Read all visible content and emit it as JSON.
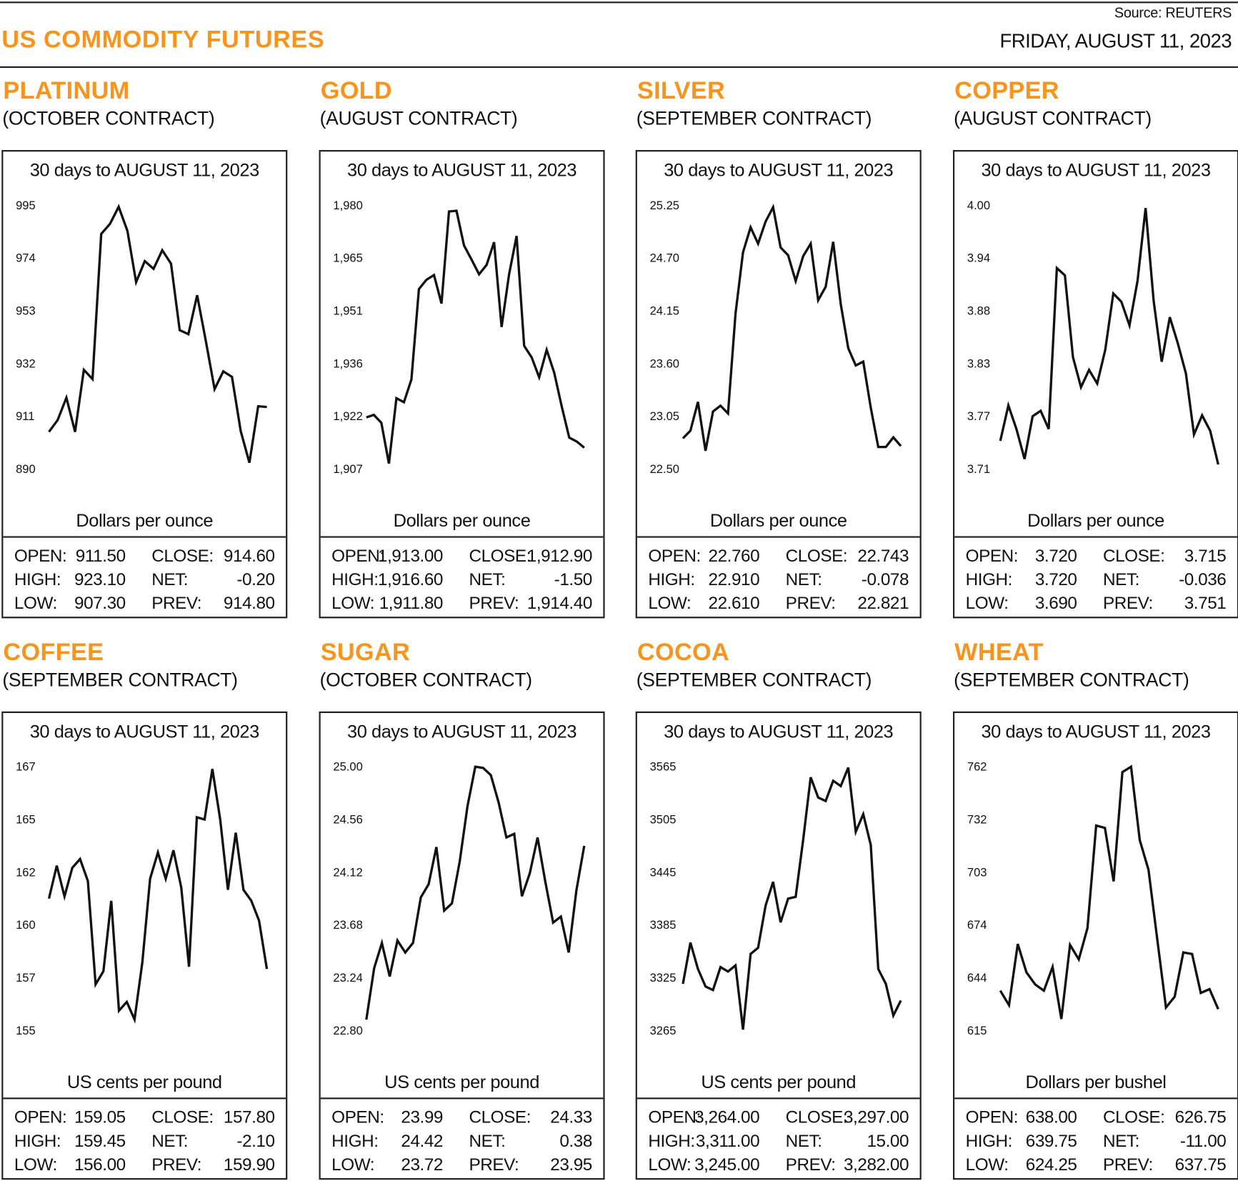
{
  "header": {
    "title": "US COMMODITY FUTURES",
    "source_label": "Source:",
    "source": "REUTERS",
    "date": "FRIDAY, AUGUST 11, 2023"
  },
  "colors": {
    "accent": "#F7941D",
    "line": "#111111",
    "rule": "#222222"
  },
  "stat_labels": {
    "open": "OPEN:",
    "high": "HIGH:",
    "low": "LOW:",
    "close": "CLOSE:",
    "net": "NET:",
    "prev": "PREV:"
  },
  "chart_data": [
    {
      "type": "line",
      "name": "PLATINUM",
      "contract": "(OCTOBER CONTRACT)",
      "title": "30 days to AUGUST 11, 2023",
      "ylabel": "Dollars per ounce",
      "yticks": [
        "995",
        "974",
        "953",
        "932",
        "911",
        "890"
      ],
      "ylim": [
        890,
        995
      ],
      "grid": false,
      "values": [
        904.8,
        909.5,
        918.4,
        904.8,
        929.5,
        925.8,
        983.6,
        987.6,
        994.4,
        984.8,
        964.4,
        972.8,
        969.7,
        977.1,
        971.8,
        945.3,
        943.7,
        959.2,
        941.0,
        921.8,
        928.9,
        926.7,
        905.1,
        892.5,
        915.0,
        914.7
      ],
      "stats": {
        "open": "911.50",
        "high": "923.10",
        "low": "907.30",
        "close": "914.60",
        "net": "-0.20",
        "prev": "914.80"
      }
    },
    {
      "type": "line",
      "name": "GOLD",
      "contract": "(AUGUST CONTRACT)",
      "title": "30 days to AUGUST 11, 2023",
      "ylabel": "Dollars per ounce",
      "yticks": [
        "1,980",
        "1,965",
        "1,951",
        "1,936",
        "1,922",
        "1,907"
      ],
      "ylim": [
        1907,
        1980
      ],
      "grid": false,
      "values": [
        1921.3,
        1922.0,
        1919.8,
        1908.5,
        1926.6,
        1925.5,
        1931.8,
        1956.8,
        1959.4,
        1960.7,
        1952.8,
        1978.3,
        1978.5,
        1968.9,
        1965.0,
        1960.9,
        1963.5,
        1969.8,
        1946.3,
        1960.9,
        1971.5,
        1941.1,
        1937.9,
        1932.4,
        1940.0,
        1933.7,
        1924.4,
        1915.7,
        1914.6,
        1912.9
      ],
      "stats": {
        "open": "1,913.00",
        "high": "1,916.60",
        "low": "1,911.80",
        "close": "1,912.90",
        "net": "-1.50",
        "prev": "1,914.40"
      }
    },
    {
      "type": "line",
      "name": "SILVER",
      "contract": "(SEPTEMBER CONTRACT)",
      "title": "30 days to AUGUST 11, 2023",
      "ylabel": "Dollars per ounce",
      "yticks": [
        "25.25",
        "24.70",
        "24.15",
        "23.60",
        "23.05",
        "22.50"
      ],
      "ylim": [
        22.5,
        25.25
      ],
      "grid": false,
      "values": [
        22.82,
        22.9,
        23.2,
        22.69,
        23.1,
        23.16,
        23.08,
        24.12,
        24.76,
        25.02,
        24.85,
        25.08,
        25.23,
        24.81,
        24.73,
        24.46,
        24.72,
        24.85,
        24.26,
        24.4,
        24.87,
        24.22,
        23.76,
        23.58,
        23.62,
        23.14,
        22.73,
        22.73,
        22.83,
        22.74
      ],
      "stats": {
        "open": "22.760",
        "high": "22.910",
        "low": "22.610",
        "close": "22.743",
        "net": "-0.078",
        "prev": "22.821"
      }
    },
    {
      "type": "line",
      "name": "COPPER",
      "contract": "(AUGUST CONTRACT)",
      "title": "30 days to AUGUST 11, 2023",
      "ylabel": "Dollars per ounce",
      "yticks": [
        "4.00",
        "3.94",
        "3.88",
        "3.83",
        "3.77",
        "3.71"
      ],
      "ylim": [
        3.71,
        4.0
      ],
      "grid": false,
      "values": [
        3.741,
        3.78,
        3.754,
        3.721,
        3.768,
        3.774,
        3.754,
        3.931,
        3.923,
        3.833,
        3.8,
        3.819,
        3.804,
        3.841,
        3.903,
        3.894,
        3.868,
        3.917,
        3.997,
        3.895,
        3.828,
        3.877,
        3.848,
        3.815,
        3.748,
        3.769,
        3.752,
        3.715
      ],
      "stats": {
        "open": "3.720",
        "high": "3.720",
        "low": "3.690",
        "close": "3.715",
        "net": "-0.036",
        "prev": "3.751"
      }
    },
    {
      "type": "line",
      "name": "COFFEE",
      "contract": "(SEPTEMBER CONTRACT)",
      "title": "30 days to AUGUST 11, 2023",
      "ylabel": "US cents per pound",
      "yticks": [
        "167",
        "165",
        "162",
        "160",
        "157",
        "155"
      ],
      "ylim": [
        155,
        167
      ],
      "grid": false,
      "values": [
        161.0,
        162.5,
        161.1,
        162.4,
        162.8,
        161.8,
        157.1,
        157.7,
        160.9,
        155.9,
        156.3,
        155.5,
        158.1,
        161.9,
        163.1,
        161.9,
        163.2,
        161.5,
        157.9,
        164.7,
        164.6,
        166.9,
        164.6,
        161.4,
        164.0,
        161.4,
        160.9,
        160.0,
        157.8
      ],
      "stats": {
        "open": "159.05",
        "high": "159.45",
        "low": "156.00",
        "close": "157.80",
        "net": "-2.10",
        "prev": "159.90"
      }
    },
    {
      "type": "line",
      "name": "SUGAR",
      "contract": "(OCTOBER CONTRACT)",
      "title": "30 days to AUGUST 11, 2023",
      "ylabel": "US cents per pound",
      "yticks": [
        "25.00",
        "24.56",
        "24.12",
        "23.68",
        "23.24",
        "22.80"
      ],
      "ylim": [
        22.8,
        25.0
      ],
      "grid": false,
      "values": [
        22.89,
        23.32,
        23.53,
        23.25,
        23.55,
        23.45,
        23.53,
        23.91,
        24.02,
        24.33,
        23.8,
        23.86,
        24.21,
        24.67,
        25.0,
        24.99,
        24.93,
        24.7,
        24.41,
        24.44,
        23.92,
        24.11,
        24.41,
        24.04,
        23.7,
        23.75,
        23.45,
        23.97,
        24.34
      ],
      "stats": {
        "open": "23.99",
        "high": "24.42",
        "low": "23.72",
        "close": "24.33",
        "net": "0.38",
        "prev": "23.95"
      }
    },
    {
      "type": "line",
      "name": "COCOA",
      "contract": "(SEPTEMBER CONTRACT)",
      "title": "30 days to AUGUST 11, 2023",
      "ylabel": "US cents per pound",
      "yticks": [
        "3565",
        "3505",
        "3445",
        "3385",
        "3325",
        "3265"
      ],
      "ylim": [
        3265,
        3565
      ],
      "grid": false,
      "values": [
        3318,
        3365,
        3335,
        3315,
        3311,
        3337,
        3332,
        3339,
        3266,
        3352,
        3359,
        3407,
        3434,
        3388,
        3415,
        3417,
        3482,
        3553,
        3530,
        3526,
        3549,
        3543,
        3564,
        3491,
        3511,
        3476,
        3335,
        3318,
        3282,
        3299
      ],
      "stats": {
        "open": "3,264.00",
        "high": "3,311.00",
        "low": "3,245.00",
        "close": "3,297.00",
        "net": "15.00",
        "prev": "3,282.00"
      }
    },
    {
      "type": "line",
      "name": "WHEAT",
      "contract": "(SEPTEMBER CONTRACT)",
      "title": "30 days to AUGUST 11, 2023",
      "ylabel": "Dollars per bushel",
      "yticks": [
        "762",
        "732",
        "703",
        "674",
        "644",
        "615"
      ],
      "ylim": [
        615,
        762
      ],
      "grid": false,
      "values": [
        637.2,
        629.1,
        663.2,
        647.4,
        640.6,
        637.2,
        650.4,
        621.4,
        662.7,
        654.6,
        672.1,
        729.2,
        727.9,
        698.1,
        759.0,
        762.0,
        721.1,
        704.5,
        666.1,
        627.8,
        633.8,
        658.5,
        657.6,
        635.9,
        638.0,
        626.9
      ],
      "stats": {
        "open": "638.00",
        "high": "639.75",
        "low": "624.25",
        "close": "626.75",
        "net": "-11.00",
        "prev": "637.75"
      }
    }
  ]
}
